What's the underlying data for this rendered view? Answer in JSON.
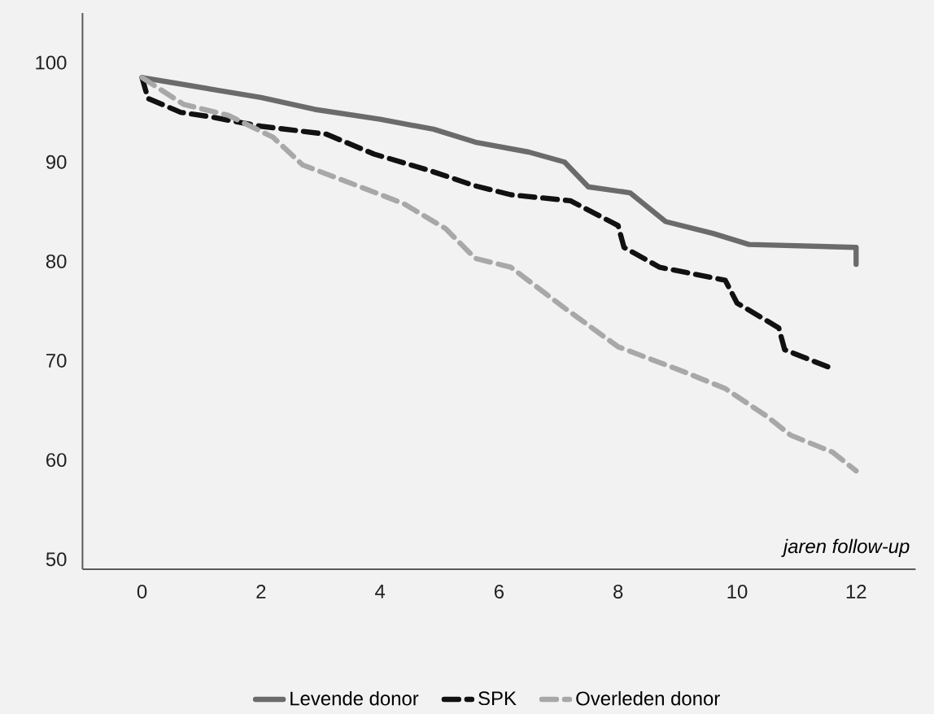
{
  "chart_data": {
    "type": "line",
    "xlabel": "jaren follow-up",
    "xlim": [
      -1,
      13
    ],
    "ylim": [
      49,
      105
    ],
    "xticks": [
      0,
      2,
      4,
      6,
      8,
      10,
      12
    ],
    "yticks": [
      50,
      60,
      70,
      80,
      90,
      100
    ],
    "grid": false,
    "legend": "bottom",
    "series": [
      {
        "name": "Levende donor",
        "color": "#6b6b6b",
        "line_style": "solid",
        "x": [
          0,
          0.5,
          1.3,
          2,
          2.9,
          4,
          4.9,
          5.6,
          6.5,
          7.1,
          7.5,
          8.2,
          8.8,
          9.6,
          10.2,
          12,
          12
        ],
        "values": [
          98.5,
          98,
          97.2,
          96.5,
          95.3,
          94.3,
          93.3,
          92,
          91,
          90,
          87.5,
          86.9,
          84,
          82.8,
          81.7,
          81.4,
          79.7
        ]
      },
      {
        "name": "SPK",
        "color": "#111111",
        "line_style": "dashed",
        "x": [
          0,
          0.1,
          0.65,
          1.1,
          2,
          3.1,
          3.9,
          4.8,
          5.6,
          6.2,
          7.2,
          8,
          8.1,
          8.7,
          9.8,
          10,
          10.7,
          10.8,
          11.6
        ],
        "values": [
          98.5,
          96.4,
          95,
          94.6,
          93.6,
          92.8,
          90.8,
          89.2,
          87.6,
          86.7,
          86.1,
          83.6,
          81.4,
          79.4,
          78.1,
          75.8,
          73.3,
          71.1,
          69.2
        ]
      },
      {
        "name": "Overleden donor",
        "color": "#a8a8a8",
        "line_style": "dashed",
        "x": [
          0,
          0.7,
          1.45,
          2.2,
          2.7,
          3.8,
          4.4,
          5.1,
          5.6,
          6.2,
          7.1,
          8,
          9.1,
          9.8,
          10.5,
          10.9,
          11.6,
          12
        ],
        "values": [
          98.5,
          95.8,
          94.7,
          92.5,
          89.7,
          87.2,
          85.8,
          83.3,
          80.3,
          79.4,
          75.3,
          71.4,
          68.9,
          67.2,
          64.4,
          62.5,
          60.8,
          58.9
        ]
      }
    ]
  }
}
